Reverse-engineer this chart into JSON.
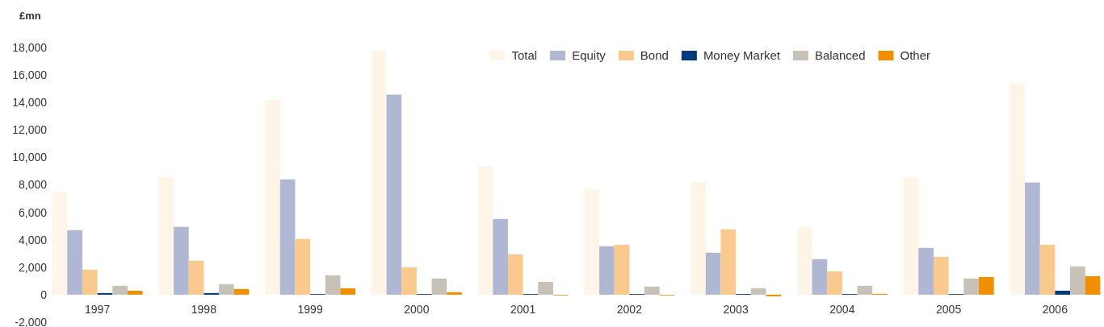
{
  "chart_data": {
    "type": "bar",
    "ylabel": "£mn",
    "categories": [
      "1997",
      "1998",
      "1999",
      "2000",
      "2001",
      "2002",
      "2003",
      "2004",
      "2005",
      "2006"
    ],
    "series": [
      {
        "name": "Total",
        "color": "#fef4e8",
        "values": [
          7460,
          8580,
          14160,
          17810,
          9340,
          7700,
          8170,
          4940,
          8580,
          15400
        ]
      },
      {
        "name": "Equity",
        "color": "#b0b7d3",
        "values": [
          4700,
          4940,
          8400,
          14570,
          5520,
          3530,
          3060,
          2590,
          3410,
          8170
        ]
      },
      {
        "name": "Bond",
        "color": "#f9c98d",
        "values": [
          1820,
          2470,
          4060,
          2000,
          2940,
          3640,
          4760,
          1700,
          2760,
          3640
        ]
      },
      {
        "name": "Money Market",
        "color": "#003c7d",
        "values": [
          120,
          120,
          50,
          50,
          50,
          50,
          50,
          50,
          50,
          290
        ]
      },
      {
        "name": "Balanced",
        "color": "#c8c1b8",
        "values": [
          650,
          770,
          1410,
          1180,
          940,
          590,
          470,
          650,
          1180,
          2060
        ]
      },
      {
        "name": "Other",
        "color": "#f09000",
        "values": [
          290,
          410,
          470,
          180,
          -50,
          -50,
          -120,
          60,
          1290,
          1350
        ]
      }
    ],
    "ylim": [
      -2000,
      18000
    ],
    "yticks": [
      {
        "value": -2000,
        "label": "-2,000"
      },
      0,
      {
        "value": 2000,
        "label": "2,000"
      },
      {
        "value": 4000,
        "label": "4,000"
      },
      {
        "value": 6000,
        "label": "6,000"
      },
      {
        "value": 8000,
        "label": "8,000"
      },
      {
        "value": 10000,
        "label": "10,000"
      },
      {
        "value": 12000,
        "label": "12,000"
      },
      {
        "value": 14000,
        "label": "14,000"
      },
      {
        "value": 16000,
        "label": "16,000"
      },
      {
        "value": 18000,
        "label": "18,000"
      }
    ],
    "grid": false,
    "legend": "top right"
  }
}
